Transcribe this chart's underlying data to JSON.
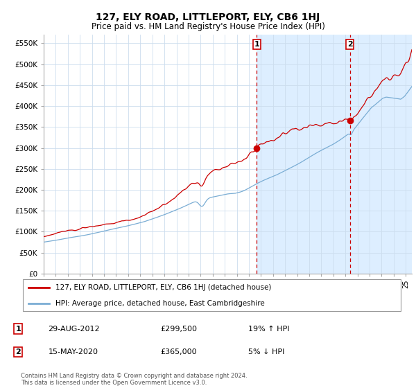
{
  "title": "127, ELY ROAD, LITTLEPORT, ELY, CB6 1HJ",
  "subtitle": "Price paid vs. HM Land Registry's House Price Index (HPI)",
  "legend_line1": "127, ELY ROAD, LITTLEPORT, ELY, CB6 1HJ (detached house)",
  "legend_line2": "HPI: Average price, detached house, East Cambridgeshire",
  "sale1_date": "29-AUG-2012",
  "sale1_price": "£299,500",
  "sale1_hpi": "19% ↑ HPI",
  "sale1_x": 2012.66,
  "sale1_y": 299500,
  "sale2_date": "15-MAY-2020",
  "sale2_price": "£365,000",
  "sale2_hpi": "5% ↓ HPI",
  "sale2_x": 2020.37,
  "sale2_y": 365000,
  "xmin": 1995.0,
  "xmax": 2025.5,
  "ymin": 0,
  "ymax": 570000,
  "yticks": [
    0,
    50000,
    100000,
    150000,
    200000,
    250000,
    300000,
    350000,
    400000,
    450000,
    500000,
    550000
  ],
  "ytick_labels": [
    "£0",
    "£50K",
    "£100K",
    "£150K",
    "£200K",
    "£250K",
    "£300K",
    "£350K",
    "£400K",
    "£450K",
    "£500K",
    "£550K"
  ],
  "red_line_color": "#cc0000",
  "blue_line_color": "#7aadd4",
  "grid_color": "#ccddee",
  "shaded_color": "#ddeeff",
  "footer": "Contains HM Land Registry data © Crown copyright and database right 2024.\nThis data is licensed under the Open Government Licence v3.0."
}
